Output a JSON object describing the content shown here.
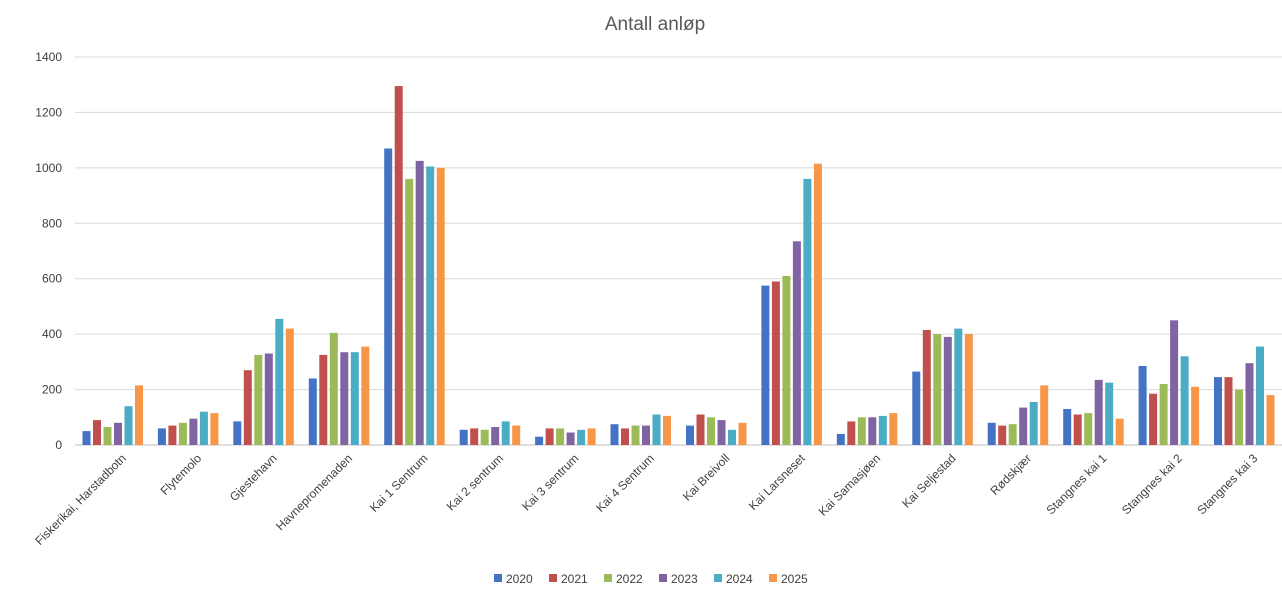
{
  "chart_data": {
    "type": "bar",
    "title": "Antall anløp",
    "xlabel": "",
    "ylabel": "",
    "ylim": [
      0,
      1400
    ],
    "yticks": [
      "0",
      "200",
      "400",
      "600",
      "800",
      "1000",
      "1200",
      "1400"
    ],
    "grid": true,
    "legend_position": "bottom",
    "categories": [
      "Fiskerikai, Harstadbotn",
      "Flytemolo",
      "Gjestehavn",
      "Havnepromenaden",
      "Kai 1 Sentrum",
      "Kai 2 sentrum",
      "Kai 3 sentrum",
      "Kai 4 Sentrum",
      "Kai Breivoll",
      "Kai Larsneset",
      "Kai Samasjøen",
      "Kai Seljestad",
      "Rødskjær",
      "Stangnes kai 1",
      "Stangnes kai 2",
      "Stangnes kai 3"
    ],
    "series": [
      {
        "name": "2020",
        "color": "#4472c4",
        "values": [
          50,
          60,
          85,
          240,
          1070,
          55,
          30,
          75,
          70,
          575,
          40,
          265,
          80,
          130,
          285,
          245
        ]
      },
      {
        "name": "2021",
        "color": "#c0504d",
        "values": [
          90,
          70,
          270,
          325,
          1295,
          60,
          60,
          60,
          110,
          590,
          85,
          415,
          70,
          110,
          185,
          245
        ]
      },
      {
        "name": "2022",
        "color": "#9bbb59",
        "values": [
          65,
          80,
          325,
          405,
          960,
          55,
          60,
          70,
          100,
          610,
          100,
          400,
          75,
          115,
          220,
          200
        ]
      },
      {
        "name": "2023",
        "color": "#8064a2",
        "values": [
          80,
          95,
          330,
          335,
          1025,
          65,
          45,
          70,
          90,
          735,
          100,
          390,
          135,
          235,
          450,
          295
        ]
      },
      {
        "name": "2024",
        "color": "#4bacc6",
        "values": [
          140,
          120,
          455,
          335,
          1005,
          85,
          55,
          110,
          55,
          960,
          105,
          420,
          155,
          225,
          320,
          355
        ]
      },
      {
        "name": "2025",
        "color": "#f79646",
        "values": [
          215,
          115,
          420,
          355,
          1000,
          70,
          60,
          105,
          80,
          1015,
          115,
          400,
          215,
          95,
          210,
          180
        ]
      }
    ]
  }
}
